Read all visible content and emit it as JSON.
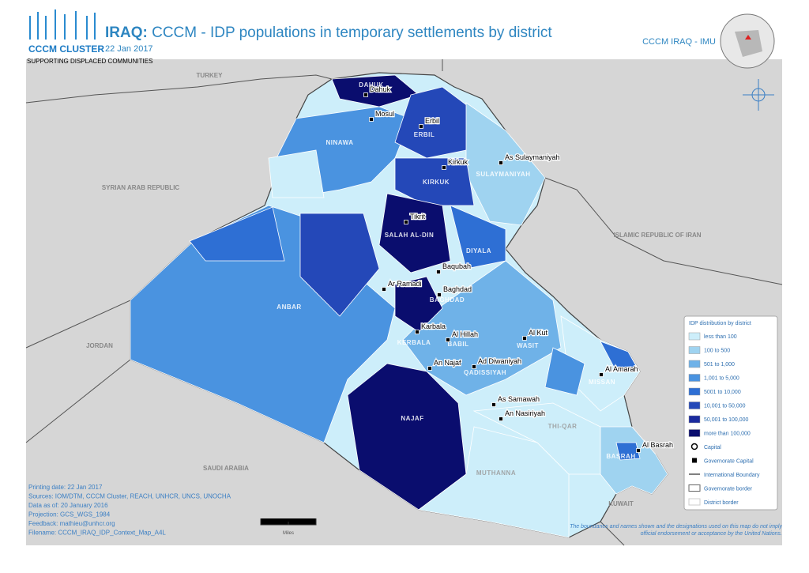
{
  "header": {
    "logo_title": "CCCM CLUSTER",
    "logo_subtitle": "SUPPORTING DISPLACED COMMUNITIES",
    "title_prefix": "IRAQ:",
    "title": "CCCM - IDP populations in temporary settlements by district",
    "date": "22 Jan 2017",
    "org": "CCCM IRAQ - IMU"
  },
  "countries": [
    "TURKEY",
    "SYRIAN ARAB REPUBLIC",
    "ISLAMIC REPUBLIC OF IRAN",
    "JORDAN",
    "SAUDI ARABIA",
    "KUWAIT"
  ],
  "governorates": [
    "DAHUK",
    "NINAWA",
    "ERBIL",
    "KIRKUK",
    "SULAYMANIYAH",
    "SALAH AL-DIN",
    "DIYALA",
    "ANBAR",
    "BAGHDAD",
    "KERBALA",
    "BABIL",
    "WASIT",
    "QADISSIYAH",
    "MISSAN",
    "NAJAF",
    "THI-QAR",
    "MUTHANNA",
    "BASRAH"
  ],
  "cities": [
    "Dahuk",
    "Mosul",
    "Erbil",
    "Kirkuk",
    "As Sulaymaniyah",
    "Tikrit",
    "Baqubah",
    "Baghdad",
    "Ar Ramadi",
    "Karbala",
    "Al Hillah",
    "Al Kut",
    "Ad Diwaniyah",
    "An Najaf",
    "Al Amarah",
    "As Samawah",
    "An Nasiriyah",
    "Al Basrah"
  ],
  "legend": {
    "title": "IDP distribution by district",
    "items": [
      {
        "label": "less than 100",
        "color": "#cdeefa"
      },
      {
        "label": "100 to 500",
        "color": "#9fd3f0"
      },
      {
        "label": "501 to 1,000",
        "color": "#6fb2e8"
      },
      {
        "label": "1,001 to 5,000",
        "color": "#4a93e0"
      },
      {
        "label": "5001 to 10,000",
        "color": "#2e6fd4"
      },
      {
        "label": "10,001 to 50,000",
        "color": "#2448b8"
      },
      {
        "label": "50,001 to 100,000",
        "color": "#1b2b9e"
      },
      {
        "label": "more than 100,000",
        "color": "#0a0d6e"
      }
    ],
    "symbols": [
      "Capital",
      "Governorate Capital",
      "International Boundary",
      "Governorate border",
      "District border"
    ]
  },
  "footer": {
    "lines": [
      "Printing date: 22 Jan 2017",
      "Sources: IOM/DTM, CCCM Cluster, REACH, UNHCR, UNCS, UNOCHA",
      "Data as of: 20 January 2016",
      "Projection: GCS_WGS_1984",
      "Feedback: mathieu@unhcr.org",
      "Filename: CCCM_IRAQ_IDP_Context_Map_A4L"
    ],
    "scale_unit": "Miles",
    "disclaimer": "The boundaries and names shown and the designations used on this map do not imply official endorsement or acceptance by the United Nations."
  }
}
